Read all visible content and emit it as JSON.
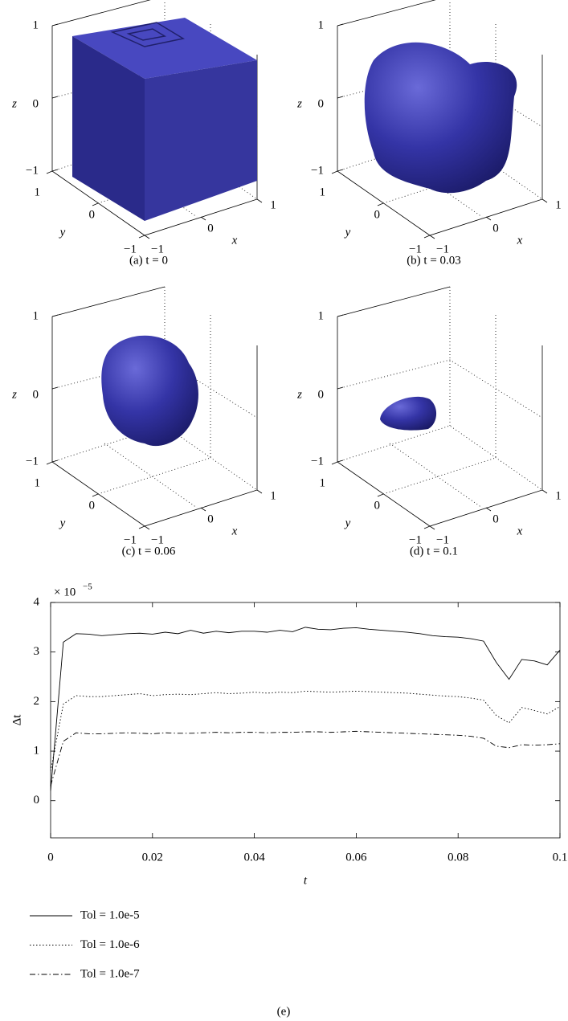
{
  "panels": [
    {
      "caption": "(a) t = 0",
      "xlabel": "x",
      "ylabel": "y",
      "zlabel": "z",
      "xticks": [
        "−1",
        "0",
        "1"
      ],
      "yticks": [
        "−1",
        "0",
        "1"
      ],
      "zticks": [
        "−1",
        "0",
        "1"
      ]
    },
    {
      "caption": "(b) t = 0.03",
      "xlabel": "x",
      "ylabel": "y",
      "zlabel": "z",
      "xticks": [
        "−1",
        "0",
        "1"
      ],
      "yticks": [
        "−1",
        "0",
        "1"
      ],
      "zticks": [
        "−1",
        "0",
        "1"
      ]
    },
    {
      "caption": "(c) t = 0.06",
      "xlabel": "x",
      "ylabel": "y",
      "zlabel": "z",
      "xticks": [
        "−1",
        "0",
        "1"
      ],
      "yticks": [
        "−1",
        "0",
        "1"
      ],
      "zticks": [
        "−1",
        "0",
        "1"
      ]
    },
    {
      "caption": "(d) t = 0.1",
      "xlabel": "x",
      "ylabel": "y",
      "zlabel": "z",
      "xticks": [
        "−1",
        "0",
        "1"
      ],
      "yticks": [
        "−1",
        "0",
        "1"
      ],
      "zticks": [
        "−1",
        "0",
        "1"
      ]
    }
  ],
  "chart_data": {
    "type": "line",
    "caption": "(e)",
    "xlabel": "t",
    "ylabel": "Δt",
    "y_scale_base": "× 10",
    "y_scale_exponent": "−5",
    "x": [
      0,
      0.0025,
      0.005,
      0.0075,
      0.01,
      0.0125,
      0.015,
      0.0175,
      0.02,
      0.0225,
      0.025,
      0.0275,
      0.03,
      0.0325,
      0.035,
      0.0375,
      0.04,
      0.0425,
      0.045,
      0.0475,
      0.05,
      0.0525,
      0.055,
      0.0575,
      0.06,
      0.0625,
      0.065,
      0.0675,
      0.07,
      0.0725,
      0.075,
      0.0775,
      0.08,
      0.0825,
      0.085,
      0.0875,
      0.09,
      0.0925,
      0.095,
      0.0975,
      0.1
    ],
    "series": [
      {
        "name": "Tol = 1.0e-5",
        "color": "#000000",
        "dash": "none",
        "values": [
          0.2,
          3.2,
          3.37,
          3.36,
          3.33,
          3.35,
          3.37,
          3.38,
          3.36,
          3.4,
          3.37,
          3.44,
          3.38,
          3.42,
          3.39,
          3.42,
          3.42,
          3.4,
          3.44,
          3.41,
          3.5,
          3.46,
          3.45,
          3.48,
          3.49,
          3.46,
          3.44,
          3.42,
          3.4,
          3.37,
          3.33,
          3.31,
          3.3,
          3.27,
          3.22,
          2.79,
          2.45,
          2.85,
          2.82,
          2.74,
          3.04
        ]
      },
      {
        "name": "Tol = 1.0e-6",
        "color": "#000000",
        "dash": "1.5,2.5",
        "values": [
          0.6,
          1.95,
          2.12,
          2.1,
          2.1,
          2.12,
          2.14,
          2.16,
          2.12,
          2.14,
          2.15,
          2.14,
          2.16,
          2.18,
          2.16,
          2.17,
          2.19,
          2.17,
          2.19,
          2.18,
          2.21,
          2.2,
          2.19,
          2.2,
          2.21,
          2.2,
          2.19,
          2.18,
          2.17,
          2.15,
          2.13,
          2.11,
          2.1,
          2.07,
          2.03,
          1.72,
          1.57,
          1.88,
          1.82,
          1.75,
          1.9
        ]
      },
      {
        "name": "Tol = 1.0e-7",
        "color": "#000000",
        "dash": "7,3,1.5,3",
        "values": [
          0.3,
          1.2,
          1.37,
          1.35,
          1.35,
          1.36,
          1.37,
          1.36,
          1.35,
          1.37,
          1.36,
          1.36,
          1.37,
          1.38,
          1.37,
          1.38,
          1.38,
          1.37,
          1.38,
          1.38,
          1.39,
          1.39,
          1.38,
          1.39,
          1.4,
          1.39,
          1.38,
          1.37,
          1.36,
          1.35,
          1.34,
          1.33,
          1.32,
          1.3,
          1.26,
          1.1,
          1.07,
          1.13,
          1.12,
          1.13,
          1.15
        ]
      }
    ],
    "xlim": [
      0,
      0.1
    ],
    "xticks": [
      0,
      0.02,
      0.04,
      0.06,
      0.08,
      0.1
    ],
    "ylim": [
      -0.75,
      4
    ],
    "yticks": [
      0,
      1,
      2,
      3,
      4
    ],
    "grid": false
  }
}
